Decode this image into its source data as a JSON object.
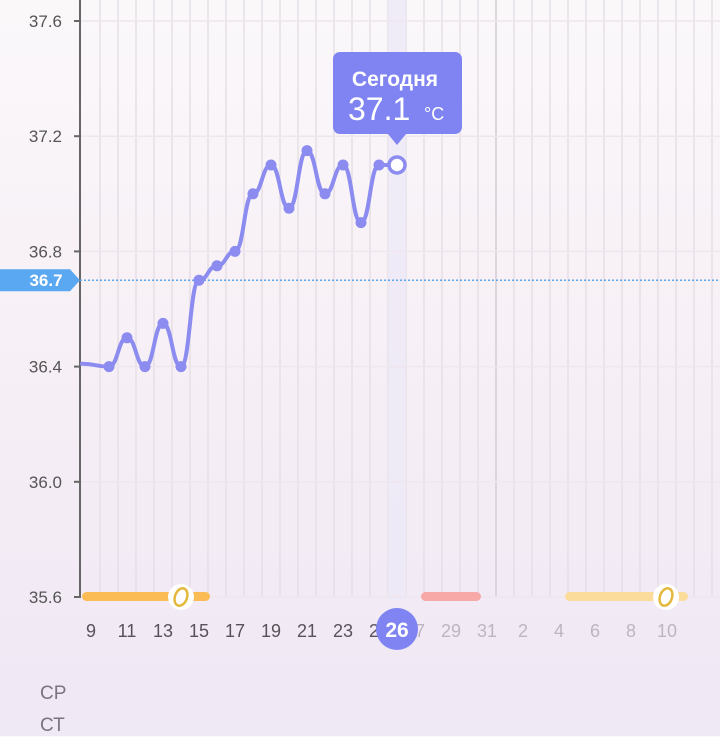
{
  "chart_data": {
    "type": "line",
    "ylim": [
      35.6,
      37.6
    ],
    "y_ticks": [
      "37.6",
      "37.2",
      "36.8",
      "36.4",
      "36.0",
      "35.6"
    ],
    "x_tick_labels": [
      "9",
      "11",
      "13",
      "15",
      "17",
      "19",
      "21",
      "23",
      "25",
      "26",
      "27",
      "29",
      "31",
      "2",
      "4",
      "6",
      "8",
      "10"
    ],
    "x_days": [
      10,
      11,
      12,
      13,
      14,
      15,
      16,
      17,
      18,
      19,
      20,
      21,
      22,
      23,
      24,
      25,
      26
    ],
    "values": [
      36.4,
      36.5,
      36.4,
      36.55,
      36.4,
      36.7,
      36.75,
      36.8,
      37.0,
      37.1,
      36.95,
      37.15,
      37.0,
      37.1,
      36.9,
      37.1,
      37.1
    ],
    "coverline": {
      "value": 36.7,
      "label": "36.7"
    },
    "today": {
      "day": 26,
      "title": "Сегодня",
      "value": "37.1",
      "unit": "°C"
    },
    "phase_bars": [
      {
        "kind": "fertile",
        "from_day": 9.5,
        "to_day": 16.5,
        "color": "#fbbc55"
      },
      {
        "kind": "period",
        "from_day": 28.3,
        "to_day": 31.6,
        "color": "#f7a9a8"
      },
      {
        "kind": "fertile-predicted",
        "from_day": "Jan 4",
        "to_day": "Jan 11",
        "color": "#fbdc9b"
      }
    ],
    "ovulation_days": [
      "14",
      "Jan 10"
    ],
    "grid": true,
    "colors": {
      "line": "#8b8bf0",
      "accent": "#7f84f2",
      "coverline": "#5aa8f2"
    }
  },
  "rows": [
    "СР",
    "СТ"
  ]
}
